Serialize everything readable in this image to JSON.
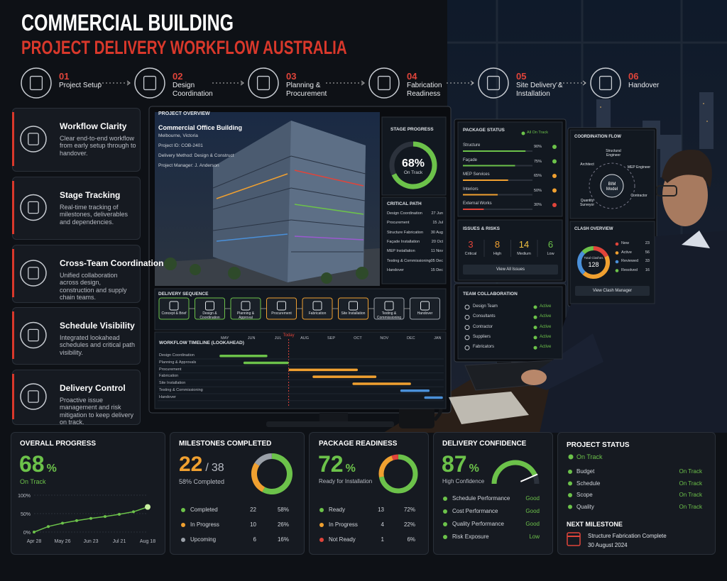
{
  "header": {
    "title": "COMMERCIAL BUILDING",
    "subtitle": "PROJECT DELIVERY WORKFLOW AUSTRALIA"
  },
  "steps": [
    {
      "number": "01",
      "label": "Project Setup"
    },
    {
      "number": "02",
      "label": "Design Coordination"
    },
    {
      "number": "03",
      "label": "Planning & Procurement"
    },
    {
      "number": "04",
      "label": "Fabrication Readiness"
    },
    {
      "number": "05",
      "label": "Site Delivery & Installation"
    },
    {
      "number": "06",
      "label": "Handover"
    }
  ],
  "features": [
    {
      "title": "Workflow Clarity",
      "text": "Clear end-to-end workflow from early setup through to handover."
    },
    {
      "title": "Stage Tracking",
      "text": "Real-time tracking of milestones, deliverables and dependencies."
    },
    {
      "title": "Cross-Team Coordination",
      "text": "Unified collaboration across design, construction and supply chain teams."
    },
    {
      "title": "Schedule Visibility",
      "text": "Integrated lookahead schedules and critical path visibility."
    },
    {
      "title": "Delivery Control",
      "text": "Proactive issue management and risk mitigation to keep delivery on track."
    }
  ],
  "main_screen": {
    "overview": {
      "heading": "PROJECT OVERVIEW",
      "name": "Commercial Office Building",
      "location": "Melbourne, Victoria",
      "project_id": "Project ID:  COB-2401",
      "delivery_method": "Delivery Method:  Design & Construct",
      "manager": "Project Manager:   J. Anderson"
    },
    "stage_progress": {
      "heading": "STAGE PROGRESS",
      "value": 68,
      "value_label": "68%",
      "caption": "On Track",
      "range": [
        0,
        100
      ]
    },
    "critical_path": {
      "heading": "CRITICAL PATH",
      "rows": [
        [
          "Design Coordination",
          "27 Jun"
        ],
        [
          "Procurement",
          "15 Jul"
        ],
        [
          "Structure Fabrication",
          "30 Aug"
        ],
        [
          "Façade Installation",
          "20 Oct"
        ],
        [
          "MEP Installation",
          "11 Nov"
        ],
        [
          "Testing & Commissioning",
          "05 Dec"
        ],
        [
          "Handover",
          "15 Dec"
        ]
      ]
    },
    "delivery_sequence": {
      "heading": "DELIVERY SEQUENCE",
      "steps": [
        "Concept & Brief",
        "Design & Coordination",
        "Planning & Approval",
        "Procurement",
        "Fabrication",
        "Site Installation",
        "Testing & Commissioning",
        "Handover"
      ]
    },
    "timeline": {
      "heading": "WORKFLOW TIMELINE (LOOKAHEAD)",
      "months": [
        "MAY",
        "JUN",
        "JUL",
        "AUG",
        "SEP",
        "OCT",
        "NOV",
        "DEC",
        "JAN"
      ],
      "xlim": [
        -0.5,
        8.5
      ],
      "today_label": "Today",
      "today": 2.4,
      "tasks": [
        {
          "name": "Design Coordination",
          "start": -0.2,
          "end": 1.6,
          "color": "#6cc24a"
        },
        {
          "name": "Planning & Approvals",
          "start": 0.7,
          "end": 2.4,
          "color": "#6cc24a"
        },
        {
          "name": "Procurement",
          "start": 2.4,
          "end": 5.0,
          "color": "#f0a030"
        },
        {
          "name": "Fabrication",
          "start": 3.3,
          "end": 5.7,
          "color": "#f0a030"
        },
        {
          "name": "Site Installation",
          "start": 4.8,
          "end": 7.0,
          "color": "#f0a030"
        },
        {
          "name": "Testing & Commissioning",
          "start": 6.6,
          "end": 7.7,
          "color": "#4a90d9"
        },
        {
          "name": "Handover",
          "start": 7.5,
          "end": 8.2,
          "color": "#4a90d9"
        }
      ]
    }
  },
  "package_status": {
    "heading": "PACKAGE STATUS",
    "badge": "All On Track",
    "range": [
      0,
      100
    ],
    "rows": [
      {
        "name": "Structure",
        "value": 90,
        "label": "90%",
        "color": "#6cc24a"
      },
      {
        "name": "Façade",
        "value": 75,
        "label": "75%",
        "color": "#6cc24a"
      },
      {
        "name": "MEP Services",
        "value": 65,
        "label": "65%",
        "color": "#f0a030"
      },
      {
        "name": "Interiors",
        "value": 50,
        "label": "50%",
        "color": "#f0a030"
      },
      {
        "name": "External Works",
        "value": 30,
        "label": "30%",
        "color": "#e0443a"
      }
    ]
  },
  "issues": {
    "heading": "ISSUES & RISKS",
    "items": [
      {
        "value": 3,
        "label": "Critical",
        "color": "#e0443a"
      },
      {
        "value": 8,
        "label": "High",
        "color": "#f0a030"
      },
      {
        "value": 14,
        "label": "Medium",
        "color": "#f0c040"
      },
      {
        "value": 6,
        "label": "Low",
        "color": "#6cc24a"
      }
    ],
    "button": "View All Issues"
  },
  "team": {
    "heading": "TEAM COLLABORATION",
    "rows": [
      [
        "Design Team",
        "Active"
      ],
      [
        "Consultants",
        "Active"
      ],
      [
        "Contractor",
        "Active"
      ],
      [
        "Suppliers",
        "Active"
      ],
      [
        "Fabricators",
        "Active"
      ]
    ]
  },
  "coordination_flow": {
    "heading": "COORDINATION FLOW",
    "center": "BIM Model",
    "nodes": [
      "Architect",
      "Structural Engineer",
      "MEP Engineer",
      "Contractor",
      "Quantity Surveyor"
    ]
  },
  "clash_overview": {
    "heading": "CLASH OVERVIEW",
    "total_label": "Total Clashes",
    "total": 128,
    "rows": [
      {
        "name": "New",
        "value": 23,
        "color": "#e0443a"
      },
      {
        "name": "Active",
        "value": 56,
        "color": "#f0a030"
      },
      {
        "name": "Reviewed",
        "value": 33,
        "color": "#4a90d9"
      },
      {
        "name": "Resolved",
        "value": 16,
        "color": "#6cc24a"
      }
    ],
    "button": "View Clash Manager"
  },
  "overall_progress": {
    "heading": "OVERALL PROGRESS",
    "value": 68,
    "unit": "%",
    "status": "On Track",
    "chart": {
      "type": "line",
      "categories": [
        "Apr 28",
        null,
        "May 26",
        null,
        "Jun 23",
        null,
        "Jul 21",
        null,
        "Aug 18"
      ],
      "values": [
        0,
        15,
        24,
        31,
        37,
        42,
        48,
        55,
        68
      ],
      "ylim": [
        0,
        100
      ],
      "yticks": [
        {
          "value": 0,
          "label": "0%"
        },
        {
          "value": 50,
          "label": "50%"
        },
        {
          "value": 100,
          "label": "100%"
        }
      ],
      "color": "#6cc24a"
    }
  },
  "milestones": {
    "heading": "MILESTONES COMPLETED",
    "completed": 22,
    "separator": "/",
    "total": 38,
    "caption": "58% Completed",
    "rows": [
      {
        "name": "Completed",
        "count": 22,
        "percent": "58%",
        "color": "#6cc24a"
      },
      {
        "name": "In Progress",
        "count": 10,
        "percent": "26%",
        "color": "#f0a030"
      },
      {
        "name": "Upcoming",
        "count": 6,
        "percent": "16%",
        "color": "#9aa0a8"
      }
    ]
  },
  "package_readiness": {
    "heading": "PACKAGE READINESS",
    "value": 72,
    "unit": "%",
    "caption": "Ready for Installation",
    "rows": [
      {
        "name": "Ready",
        "count": 13,
        "percent": "72%",
        "color": "#6cc24a"
      },
      {
        "name": "In Progress",
        "count": 4,
        "percent": "22%",
        "color": "#f0a030"
      },
      {
        "name": "Not Ready",
        "count": 1,
        "percent": "6%",
        "color": "#e0443a"
      }
    ]
  },
  "delivery_confidence": {
    "heading": "DELIVERY CONFIDENCE",
    "value": 87,
    "unit": "%",
    "caption": "High Confidence",
    "range": [
      0,
      100
    ],
    "rows": [
      [
        "Schedule Performance",
        "Good"
      ],
      [
        "Cost Performance",
        "Good"
      ],
      [
        "Quality Performance",
        "Good"
      ],
      [
        "Risk Exposure",
        "Low"
      ]
    ]
  },
  "project_status": {
    "heading": "PROJECT STATUS",
    "status": "On Track",
    "rows": [
      [
        "Budget",
        "On Track"
      ],
      [
        "Schedule",
        "On Track"
      ],
      [
        "Scope",
        "On Track"
      ],
      [
        "Quality",
        "On Track"
      ]
    ],
    "next_heading": "NEXT MILESTONE",
    "next_name": "Structure Fabrication Complete",
    "next_date": "30 August 2024"
  }
}
